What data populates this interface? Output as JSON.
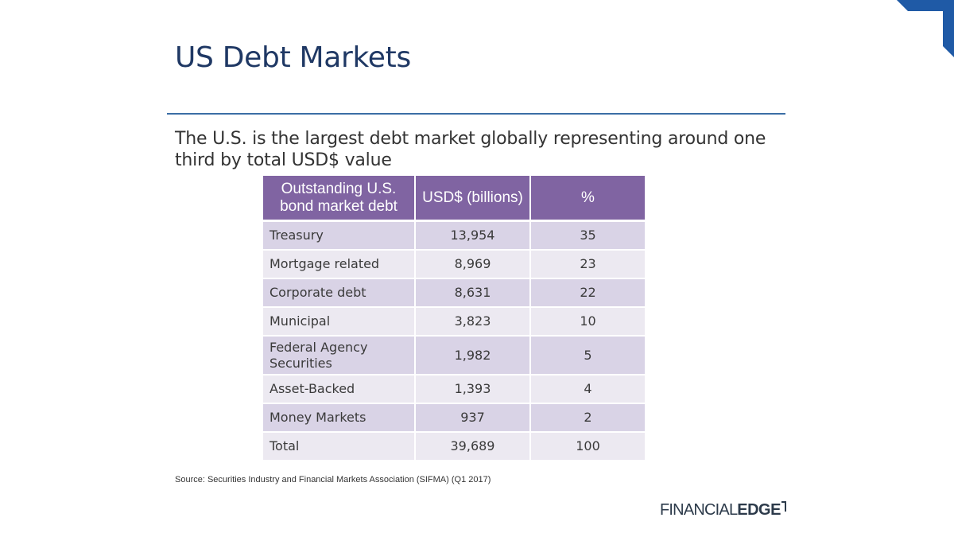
{
  "slide": {
    "title": "US Debt Markets",
    "subtitle": "The U.S. is the largest debt market globally representing around one third by total USD$ value"
  },
  "table": {
    "headers": [
      "Outstanding U.S. bond market debt",
      "USD$ (billions)",
      "%"
    ],
    "rows": [
      {
        "category": "Treasury",
        "usd_billions": "13,954",
        "percent": "35"
      },
      {
        "category": "Mortgage related",
        "usd_billions": "8,969",
        "percent": "23"
      },
      {
        "category": "Corporate debt",
        "usd_billions": "8,631",
        "percent": "22"
      },
      {
        "category": "Municipal",
        "usd_billions": "3,823",
        "percent": "10"
      },
      {
        "category": "Federal Agency Securities",
        "usd_billions": "1,982",
        "percent": "5"
      },
      {
        "category": "Asset-Backed",
        "usd_billions": "1,393",
        "percent": "4"
      },
      {
        "category": "Money Markets",
        "usd_billions": "937",
        "percent": "2"
      },
      {
        "category": "Total",
        "usd_billions": "39,689",
        "percent": "100"
      }
    ]
  },
  "source": "Source: Securities Industry and Financial Markets Association (SIFMA) (Q1 2017)",
  "logo": {
    "part1": "FINANCIAL",
    "part2": "EDGE"
  },
  "colors": {
    "title": "#1f3864",
    "rule": "#3b6ea5",
    "header_bg": "#8064a2",
    "row_dark": "#d9d3e6",
    "row_light": "#ece9f1",
    "corner": "#1f5aa6"
  }
}
